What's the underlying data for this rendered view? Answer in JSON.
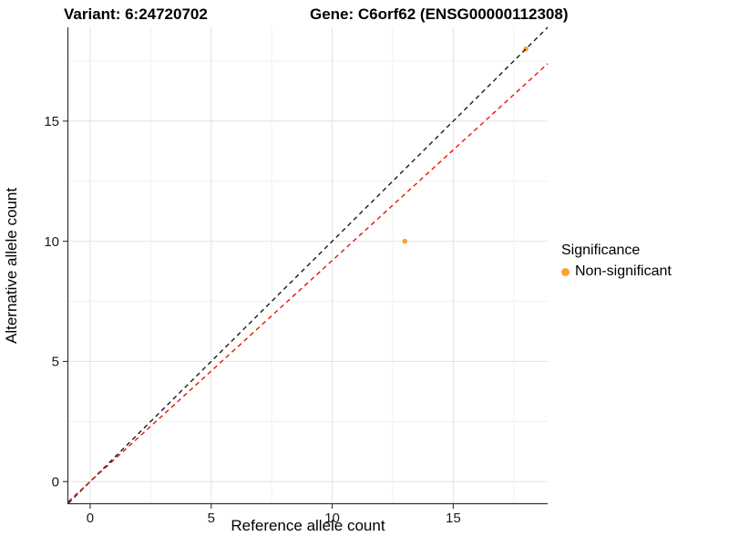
{
  "chart_data": {
    "type": "scatter",
    "titles": {
      "variant": "Variant: 6:24720702",
      "gene": "Gene: C6orf62 (ENSG00000112308)"
    },
    "xlabel": "Reference allele count",
    "ylabel": "Alternative allele count",
    "xlim": [
      -0.9,
      18.9
    ],
    "ylim": [
      -0.9,
      18.9
    ],
    "xticks": [
      0,
      5,
      10,
      15
    ],
    "yticks": [
      0,
      5,
      10,
      15
    ],
    "minor_ticks": [
      2.5,
      7.5,
      12.5,
      17.5
    ],
    "grid": true,
    "points": [
      {
        "x": 13,
        "y": 10,
        "series": "Non-significant"
      },
      {
        "x": 18,
        "y": 18,
        "series": "Non-significant"
      }
    ],
    "lines": [
      {
        "name": "identity-line",
        "slope": 1.0,
        "intercept": 0,
        "color": "#1a1a1a",
        "style": "dashed"
      },
      {
        "name": "expected-ratio-line",
        "slope": 0.92,
        "intercept": 0,
        "color": "#ee1100",
        "style": "dashed"
      }
    ],
    "legend": {
      "title": "Significance",
      "position": "right",
      "items": [
        {
          "label": "Non-significant",
          "color": "#f9a332"
        }
      ]
    },
    "colors": {
      "point": "#f9a332",
      "grid_major": "#e4e4e4",
      "grid_minor": "#efefef",
      "axis": "#333333",
      "tick_text": "#1a1a1a"
    }
  }
}
